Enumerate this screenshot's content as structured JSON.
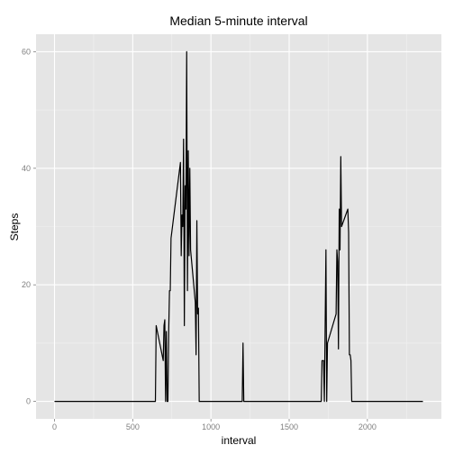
{
  "chart_data": {
    "type": "line",
    "title": "Median 5-minute interval",
    "xlabel": "interval",
    "ylabel": "Steps",
    "xlim": [
      -118,
      2473
    ],
    "ylim": [
      -3,
      63
    ],
    "x_ticks": [
      0,
      500,
      1000,
      1500,
      2000
    ],
    "y_ticks": [
      0,
      20,
      40,
      60
    ],
    "grid": true,
    "legend": "none",
    "colors": {
      "panel": "#e5e5e5",
      "grid_major": "#ffffff",
      "grid_minor": "#f2f2f2",
      "line": "#000000",
      "tick_text": "#7f7f7f"
    },
    "series": [
      {
        "points": [
          [
            0,
            0
          ],
          [
            645,
            0
          ],
          [
            650,
            13
          ],
          [
            695,
            7
          ],
          [
            700,
            13
          ],
          [
            705,
            14
          ],
          [
            710,
            0
          ],
          [
            715,
            12
          ],
          [
            720,
            0
          ],
          [
            725,
            0
          ],
          [
            730,
            12
          ],
          [
            735,
            19
          ],
          [
            740,
            19
          ],
          [
            745,
            28
          ],
          [
            805,
            41
          ],
          [
            810,
            25
          ],
          [
            815,
            32
          ],
          [
            820,
            30
          ],
          [
            825,
            45
          ],
          [
            830,
            13
          ],
          [
            835,
            37
          ],
          [
            840,
            33
          ],
          [
            845,
            60
          ],
          [
            850,
            19
          ],
          [
            855,
            43
          ],
          [
            860,
            25
          ],
          [
            865,
            40
          ],
          [
            870,
            26
          ],
          [
            900,
            17
          ],
          [
            905,
            8
          ],
          [
            910,
            31
          ],
          [
            915,
            15
          ],
          [
            920,
            16
          ],
          [
            925,
            0
          ],
          [
            1200,
            0
          ],
          [
            1205,
            10
          ],
          [
            1210,
            0
          ],
          [
            1705,
            0
          ],
          [
            1710,
            7
          ],
          [
            1720,
            7
          ],
          [
            1725,
            0
          ],
          [
            1735,
            26
          ],
          [
            1740,
            0
          ],
          [
            1745,
            10
          ],
          [
            1800,
            15
          ],
          [
            1805,
            26
          ],
          [
            1810,
            24
          ],
          [
            1815,
            9
          ],
          [
            1820,
            33
          ],
          [
            1825,
            26
          ],
          [
            1830,
            42
          ],
          [
            1835,
            30
          ],
          [
            1875,
            33
          ],
          [
            1880,
            29
          ],
          [
            1885,
            8
          ],
          [
            1890,
            8
          ],
          [
            1895,
            7
          ],
          [
            1900,
            0
          ],
          [
            2355,
            0
          ]
        ]
      }
    ]
  }
}
